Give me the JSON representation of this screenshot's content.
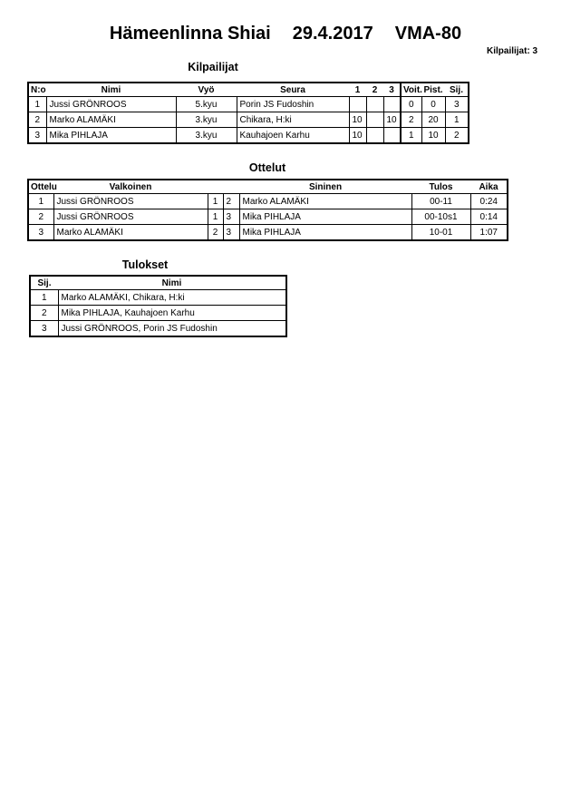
{
  "title": {
    "event": "Hämeenlinna Shiai",
    "date": "29.4.2017",
    "category": "VMA-80"
  },
  "competitor_count": "Kilpailijat: 3",
  "competitors": {
    "heading": "Kilpailijat",
    "columns": [
      "N:o",
      "Nimi",
      "Vyö",
      "Seura",
      "1",
      "2",
      "3",
      "Voit.",
      "Pist.",
      "Sij."
    ],
    "rows": [
      [
        "1",
        "Jussi GRÖNROOS",
        "5.kyu",
        "Porin JS Fudoshin",
        "",
        "",
        "",
        "0",
        "0",
        "3"
      ],
      [
        "2",
        "Marko ALAMÄKI",
        "3.kyu",
        "Chikara, H:ki",
        "10",
        "",
        "10",
        "2",
        "20",
        "1"
      ],
      [
        "3",
        "Mika PIHLAJA",
        "3.kyu",
        "Kauhajoen Karhu",
        "10",
        "",
        "",
        "1",
        "10",
        "2"
      ]
    ]
  },
  "matches": {
    "heading": "Ottelut",
    "columns": [
      "Ottelu",
      "Valkoinen",
      "",
      "",
      "Sininen",
      "Tulos",
      "Aika"
    ],
    "rows": [
      [
        "1",
        "Jussi GRÖNROOS",
        "1",
        "2",
        "Marko ALAMÄKI",
        "00-11",
        "0:24"
      ],
      [
        "2",
        "Jussi GRÖNROOS",
        "1",
        "3",
        "Mika PIHLAJA",
        "00-10s1",
        "0:14"
      ],
      [
        "3",
        "Marko ALAMÄKI",
        "2",
        "3",
        "Mika PIHLAJA",
        "10-01",
        "1:07"
      ]
    ]
  },
  "results": {
    "heading": "Tulokset",
    "columns": [
      "Sij.",
      "Nimi"
    ],
    "rows": [
      [
        "1",
        "Marko ALAMÄKI, Chikara, H:ki"
      ],
      [
        "2",
        "Mika PIHLAJA, Kauhajoen Karhu"
      ],
      [
        "3",
        "Jussi GRÖNROOS, Porin JS Fudoshin"
      ]
    ]
  }
}
